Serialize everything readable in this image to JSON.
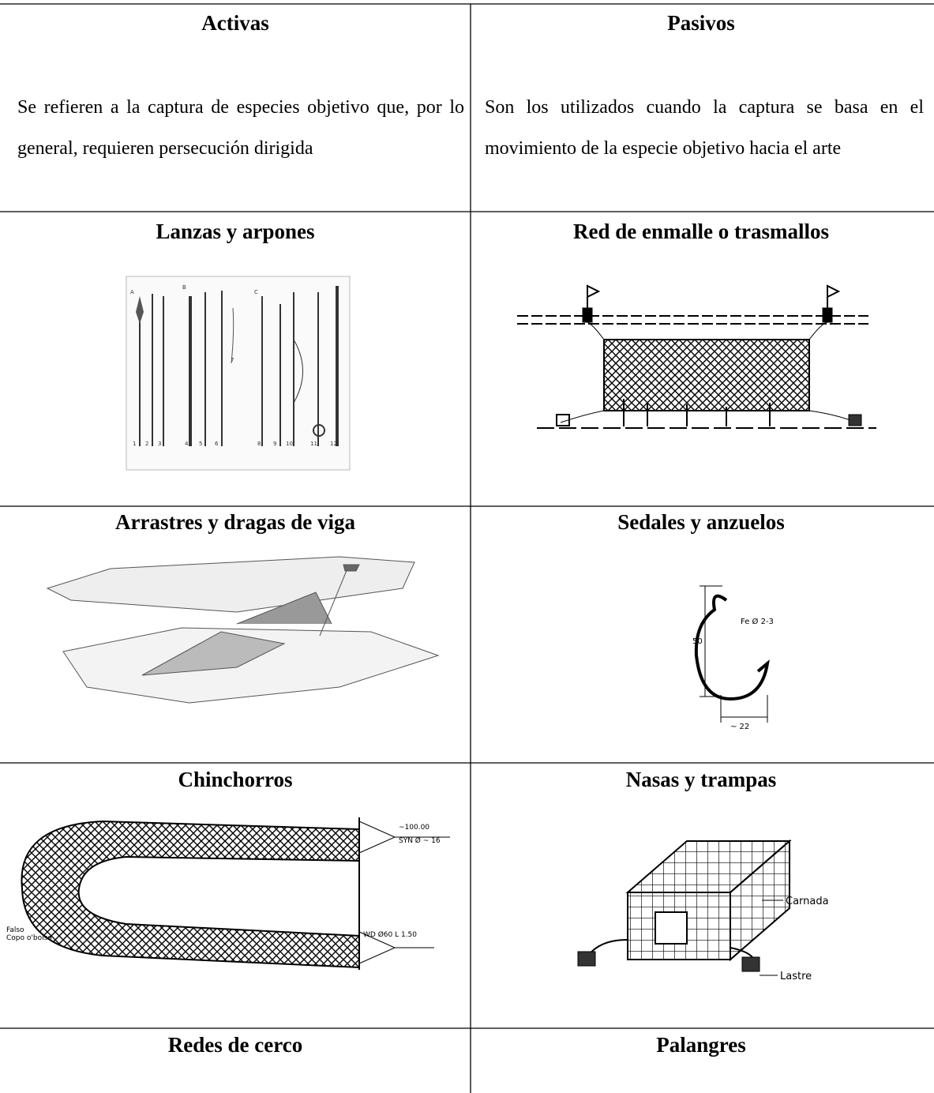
{
  "table": {
    "rows": [
      [
        {
          "title": "Activas",
          "text": "Se refieren a la captura de especies objetivo que, por lo general, requieren persecución dirigida"
        },
        {
          "title": "Pasivos",
          "text": "Son los utilizados cuando la captura se basa en el movimiento de la especie objetivo hacia el arte"
        }
      ],
      [
        {
          "title": "Lanzas y arpones",
          "figure": {
            "groups": [
              "A",
              "B",
              "C"
            ],
            "numbers": [
              "1",
              "2",
              "3",
              "4",
              "5",
              "6",
              "7",
              "8",
              "9",
              "10",
              "11",
              "12"
            ]
          }
        },
        {
          "title": "Red de enmalle o trasmallos"
        }
      ],
      [
        {
          "title": "Arrastres y dragas de viga"
        },
        {
          "title": "Sedales y anzuelos",
          "figure": {
            "labels": [
              "Fe Ø 2-3",
              "50",
              "~ 22"
            ]
          }
        }
      ],
      [
        {
          "title": "Chinchorros",
          "figure": {
            "labels": [
              "~100.00",
              "SYN Ø ~ 16",
              "WD Ø60 L 1.50",
              "Falso",
              "Copo o'bolso"
            ]
          }
        },
        {
          "title": "Nasas y trampas",
          "figure": {
            "labels": [
              "Carnada",
              "Lastre"
            ]
          }
        }
      ],
      [
        {
          "title": "Redes de cerco"
        },
        {
          "title": "Palangres"
        }
      ]
    ]
  }
}
